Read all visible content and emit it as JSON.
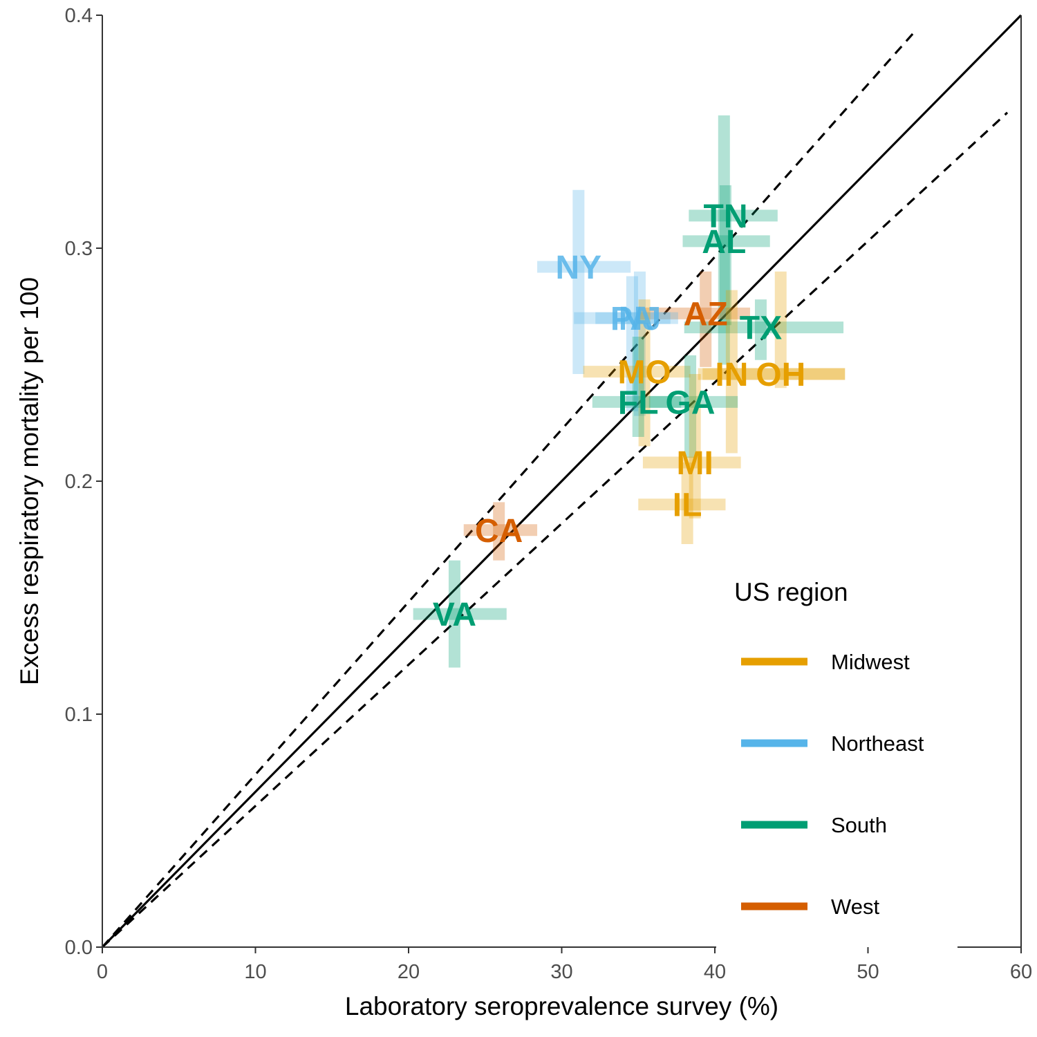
{
  "chart_data": {
    "type": "scatter",
    "xlabel": "Laboratory seroprevalence survey (%)",
    "ylabel": "Excess respiratory mortality per 100",
    "xlim": [
      0,
      60
    ],
    "ylim": [
      0,
      0.4
    ],
    "x_ticks": [
      0,
      10,
      20,
      30,
      40,
      50,
      60
    ],
    "y_ticks": [
      0.0,
      0.1,
      0.2,
      0.3,
      0.4
    ],
    "x_tick_labels": [
      "0",
      "10",
      "20",
      "30",
      "40",
      "50",
      "60"
    ],
    "y_tick_labels": [
      "0.0",
      "0.1",
      "0.2",
      "0.3",
      "0.4"
    ],
    "grid": false,
    "legend_position": "bottom-right",
    "legend": {
      "title": "US region",
      "entries": [
        {
          "name": "Midwest",
          "color": "#E69F00"
        },
        {
          "name": "Northeast",
          "color": "#56B4E9"
        },
        {
          "name": "South",
          "color": "#009E73"
        },
        {
          "name": "West",
          "color": "#D55E00"
        }
      ]
    },
    "reference_lines": [
      {
        "style": "solid",
        "slope": 0.006667
      },
      {
        "style": "dashed",
        "slope": 0.007407
      },
      {
        "style": "dashed",
        "slope": 0.006061
      }
    ],
    "points": [
      {
        "label": "AL",
        "region": "South",
        "x": 40.6,
        "y": 0.303,
        "xmin": 37.9,
        "xmax": 43.6,
        "ymin": 0.25,
        "ymax": 0.357
      },
      {
        "label": "TN",
        "region": "South",
        "x": 40.7,
        "y": 0.314,
        "xmin": 38.3,
        "xmax": 44.1,
        "ymin": 0.267,
        "ymax": 0.327
      },
      {
        "label": "NY",
        "region": "Northeast",
        "x": 31.1,
        "y": 0.292,
        "xmin": 28.4,
        "xmax": 34.5,
        "ymin": 0.246,
        "ymax": 0.325
      },
      {
        "label": "AZ",
        "region": "West",
        "x": 39.4,
        "y": 0.272,
        "xmin": 35.0,
        "xmax": 42.3,
        "ymin": 0.249,
        "ymax": 0.29
      },
      {
        "label": "NJ",
        "region": "Northeast",
        "x": 35.1,
        "y": 0.27,
        "xmin": 32.2,
        "xmax": 37.6,
        "ymin": 0.228,
        "ymax": 0.29
      },
      {
        "label": "PA",
        "region": "Northeast",
        "x": 34.6,
        "y": 0.27,
        "xmin": 30.8,
        "xmax": 37.1,
        "ymin": 0.23,
        "ymax": 0.288
      },
      {
        "label": "TX",
        "region": "South",
        "x": 43.0,
        "y": 0.266,
        "xmin": 38.0,
        "xmax": 48.4,
        "ymin": 0.252,
        "ymax": 0.278
      },
      {
        "label": "OH",
        "region": "Midwest",
        "x": 44.3,
        "y": 0.246,
        "xmin": 39.2,
        "xmax": 48.5,
        "ymin": 0.24,
        "ymax": 0.29
      },
      {
        "label": "MO",
        "region": "Midwest",
        "x": 35.4,
        "y": 0.247,
        "xmin": 31.4,
        "xmax": 38.4,
        "ymin": 0.215,
        "ymax": 0.278
      },
      {
        "label": "IN",
        "region": "Midwest",
        "x": 41.1,
        "y": 0.246,
        "xmin": 38.9,
        "xmax": 48.5,
        "ymin": 0.212,
        "ymax": 0.282
      },
      {
        "label": "FL",
        "region": "South",
        "x": 35.0,
        "y": 0.234,
        "xmin": 32.0,
        "xmax": 37.8,
        "ymin": 0.219,
        "ymax": 0.262
      },
      {
        "label": "GA",
        "region": "South",
        "x": 38.4,
        "y": 0.234,
        "xmin": 35.7,
        "xmax": 41.5,
        "ymin": 0.21,
        "ymax": 0.254
      },
      {
        "label": "MI",
        "region": "Midwest",
        "x": 38.7,
        "y": 0.208,
        "xmin": 35.3,
        "xmax": 41.7,
        "ymin": 0.184,
        "ymax": 0.246
      },
      {
        "label": "IL",
        "region": "Midwest",
        "x": 38.2,
        "y": 0.19,
        "xmin": 35.0,
        "xmax": 40.7,
        "ymin": 0.173,
        "ymax": 0.208
      },
      {
        "label": "CA",
        "region": "West",
        "x": 25.9,
        "y": 0.179,
        "xmin": 23.6,
        "xmax": 28.4,
        "ymin": 0.166,
        "ymax": 0.191
      },
      {
        "label": "VA",
        "region": "South",
        "x": 23.0,
        "y": 0.143,
        "xmin": 20.3,
        "xmax": 26.4,
        "ymin": 0.12,
        "ymax": 0.166
      }
    ]
  }
}
